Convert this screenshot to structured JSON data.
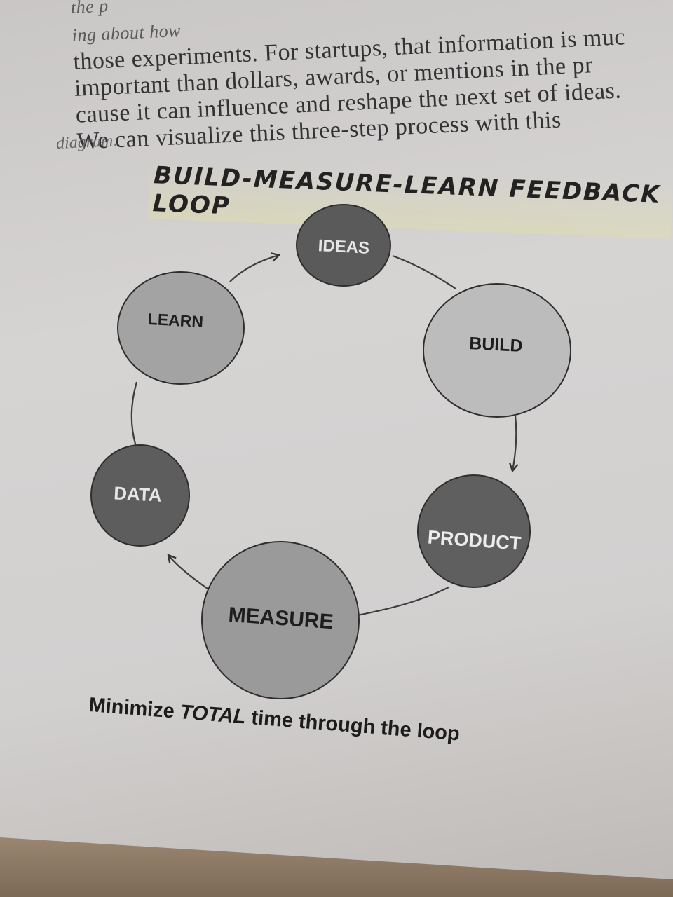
{
  "body_text": {
    "lines": [
      "the p",
      "ing about how",
      "those experiments. For startups, that information is muc",
      "important than dollars, awards, or mentions in the pr",
      "cause it can influence and reshape the next set of ideas.",
      "We can visualize this three-step process with this",
      "diagram:"
    ]
  },
  "diagram": {
    "title": "BUILD-MEASURE-LEARN FEEDBACK LOOP",
    "nodes": [
      {
        "id": "ideas",
        "label": "IDEAS",
        "color": "#5a5a5a",
        "text_color": "#e6e6e6"
      },
      {
        "id": "build",
        "label": "BUILD",
        "color": "#bcbcbc",
        "text_color": "#1e1e1e"
      },
      {
        "id": "product",
        "label": "PRODUCT",
        "color": "#5f5f5f",
        "text_color": "#ececec"
      },
      {
        "id": "measure",
        "label": "MEASURE",
        "color": "#9a9a9a",
        "text_color": "#1e1e1e"
      },
      {
        "id": "data",
        "label": "DATA",
        "color": "#5d5d5d",
        "text_color": "#e6e6e6"
      },
      {
        "id": "learn",
        "label": "LEARN",
        "color": "#a3a3a3",
        "text_color": "#1e1e1e"
      }
    ],
    "caption_prefix": "Minimize ",
    "caption_emphasis": "TOTAL",
    "caption_suffix": " time through the loop"
  }
}
